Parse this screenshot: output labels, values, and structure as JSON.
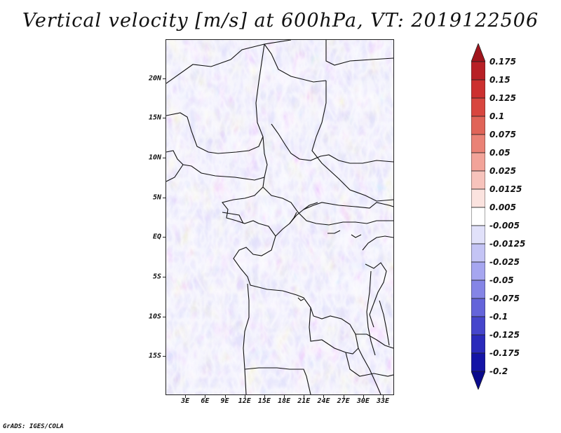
{
  "title": "Vertical velocity [m/s] at 600hPa, VT: 2019122506",
  "credit": "GrADS: IGES/COLA",
  "map": {
    "lat_labels": [
      "20N",
      "15N",
      "10N",
      "5N",
      "EQ",
      "5S",
      "10S",
      "15S"
    ],
    "lat_values": [
      20,
      15,
      10,
      5,
      0,
      -5,
      -10,
      -15
    ],
    "lon_labels": [
      "3E",
      "6E",
      "9E",
      "12E",
      "15E",
      "18E",
      "21E",
      "24E",
      "27E",
      "30E",
      "33E"
    ],
    "lon_values": [
      3,
      6,
      9,
      12,
      15,
      18,
      21,
      24,
      27,
      30,
      33
    ],
    "lat_range": [
      -19.9,
      24.9
    ],
    "lon_range": [
      0,
      34.7
    ]
  },
  "colorbar": {
    "labels": [
      "0.175",
      "0.15",
      "0.125",
      "0.1",
      "0.075",
      "0.05",
      "0.025",
      "0.0125",
      "0.005",
      "-0.005",
      "-0.0125",
      "-0.025",
      "-0.05",
      "-0.075",
      "-0.1",
      "-0.125",
      "-0.175",
      "-0.2"
    ],
    "colors": [
      "#a0141c",
      "#b82026",
      "#cc302f",
      "#d8463f",
      "#e06458",
      "#ea8276",
      "#f2a399",
      "#f7c3bc",
      "#fbe3df",
      "#ffffff",
      "#e1e1fa",
      "#c4c4f5",
      "#a6a6f0",
      "#8585e6",
      "#6464da",
      "#4545cc",
      "#2a2abb",
      "#1414a6",
      "#0a0a8c"
    ]
  }
}
